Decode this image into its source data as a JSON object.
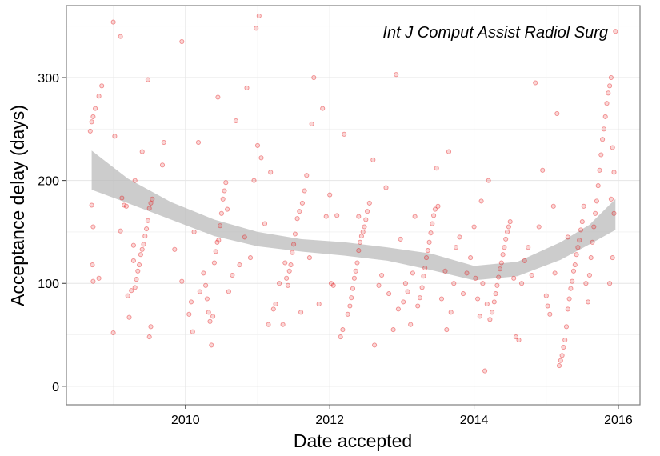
{
  "chart_data": {
    "type": "scatter",
    "title": "",
    "annotation": "Int J Comput Assist Radiol Surg",
    "xlabel": "Date accepted",
    "ylabel": "Acceptance delay (days)",
    "xlim": [
      2008.35,
      2016.3
    ],
    "ylim": [
      -18,
      370
    ],
    "xticks": [
      2010,
      2012,
      2014,
      2016
    ],
    "yticks": [
      0,
      100,
      200,
      300
    ],
    "grid": true,
    "legend": "none",
    "point_color": "#e41a1c",
    "band_color": "#bbbbbb",
    "points": [
      [
        2008.68,
        248
      ],
      [
        2008.7,
        257
      ],
      [
        2008.72,
        262
      ],
      [
        2008.75,
        270
      ],
      [
        2008.8,
        282
      ],
      [
        2008.84,
        292
      ],
      [
        2008.7,
        176
      ],
      [
        2008.72,
        155
      ],
      [
        2008.71,
        118
      ],
      [
        2008.72,
        102
      ],
      [
        2008.8,
        105
      ],
      [
        2009.0,
        354
      ],
      [
        2009.1,
        340
      ],
      [
        2009.02,
        243
      ],
      [
        2009.0,
        52
      ],
      [
        2009.12,
        183
      ],
      [
        2009.15,
        176
      ],
      [
        2009.18,
        175
      ],
      [
        2009.1,
        151
      ],
      [
        2009.2,
        88
      ],
      [
        2009.25,
        93
      ],
      [
        2009.22,
        67
      ],
      [
        2009.28,
        137
      ],
      [
        2009.28,
        122
      ],
      [
        2009.3,
        96
      ],
      [
        2009.32,
        104
      ],
      [
        2009.34,
        112
      ],
      [
        2009.36,
        118
      ],
      [
        2009.38,
        128
      ],
      [
        2009.4,
        133
      ],
      [
        2009.42,
        138
      ],
      [
        2009.44,
        146
      ],
      [
        2009.46,
        153
      ],
      [
        2009.48,
        161
      ],
      [
        2009.5,
        173
      ],
      [
        2009.52,
        178
      ],
      [
        2009.54,
        182
      ],
      [
        2009.48,
        298
      ],
      [
        2009.5,
        48
      ],
      [
        2009.52,
        58
      ],
      [
        2009.4,
        228
      ],
      [
        2009.3,
        200
      ],
      [
        2009.7,
        237
      ],
      [
        2009.68,
        215
      ],
      [
        2009.85,
        133
      ],
      [
        2009.95,
        102
      ],
      [
        2009.95,
        335
      ],
      [
        2010.05,
        70
      ],
      [
        2010.08,
        82
      ],
      [
        2010.1,
        53
      ],
      [
        2010.12,
        150
      ],
      [
        2010.18,
        237
      ],
      [
        2010.2,
        92
      ],
      [
        2010.25,
        110
      ],
      [
        2010.28,
        98
      ],
      [
        2010.3,
        85
      ],
      [
        2010.32,
        72
      ],
      [
        2010.34,
        63
      ],
      [
        2010.36,
        40
      ],
      [
        2010.38,
        68
      ],
      [
        2010.4,
        120
      ],
      [
        2010.42,
        131
      ],
      [
        2010.44,
        140
      ],
      [
        2010.46,
        142
      ],
      [
        2010.48,
        156
      ],
      [
        2010.5,
        168
      ],
      [
        2010.52,
        182
      ],
      [
        2010.54,
        190
      ],
      [
        2010.56,
        198
      ],
      [
        2010.58,
        172
      ],
      [
        2010.45,
        281
      ],
      [
        2010.6,
        92
      ],
      [
        2010.65,
        108
      ],
      [
        2010.7,
        258
      ],
      [
        2010.75,
        118
      ],
      [
        2010.82,
        145
      ],
      [
        2010.85,
        290
      ],
      [
        2010.9,
        125
      ],
      [
        2010.95,
        200
      ],
      [
        2010.98,
        348
      ],
      [
        2011.02,
        360
      ],
      [
        2011.0,
        234
      ],
      [
        2011.05,
        222
      ],
      [
        2011.1,
        158
      ],
      [
        2011.15,
        60
      ],
      [
        2011.18,
        208
      ],
      [
        2011.22,
        75
      ],
      [
        2011.25,
        80
      ],
      [
        2011.3,
        100
      ],
      [
        2011.35,
        60
      ],
      [
        2011.38,
        120
      ],
      [
        2011.4,
        105
      ],
      [
        2011.42,
        98
      ],
      [
        2011.44,
        112
      ],
      [
        2011.46,
        118
      ],
      [
        2011.48,
        130
      ],
      [
        2011.5,
        138
      ],
      [
        2011.52,
        148
      ],
      [
        2011.55,
        163
      ],
      [
        2011.58,
        170
      ],
      [
        2011.62,
        178
      ],
      [
        2011.65,
        190
      ],
      [
        2011.6,
        72
      ],
      [
        2011.68,
        205
      ],
      [
        2011.72,
        125
      ],
      [
        2011.75,
        255
      ],
      [
        2011.78,
        300
      ],
      [
        2011.85,
        80
      ],
      [
        2011.9,
        270
      ],
      [
        2011.95,
        165
      ],
      [
        2012.0,
        186
      ],
      [
        2012.02,
        100
      ],
      [
        2012.05,
        98
      ],
      [
        2012.1,
        166
      ],
      [
        2012.15,
        48
      ],
      [
        2012.18,
        55
      ],
      [
        2012.2,
        245
      ],
      [
        2012.25,
        70
      ],
      [
        2012.28,
        78
      ],
      [
        2012.3,
        86
      ],
      [
        2012.32,
        95
      ],
      [
        2012.34,
        105
      ],
      [
        2012.36,
        112
      ],
      [
        2012.38,
        120
      ],
      [
        2012.4,
        132
      ],
      [
        2012.42,
        140
      ],
      [
        2012.44,
        146
      ],
      [
        2012.46,
        150
      ],
      [
        2012.48,
        155
      ],
      [
        2012.5,
        162
      ],
      [
        2012.52,
        170
      ],
      [
        2012.55,
        178
      ],
      [
        2012.4,
        165
      ],
      [
        2012.6,
        220
      ],
      [
        2012.62,
        40
      ],
      [
        2012.68,
        98
      ],
      [
        2012.72,
        108
      ],
      [
        2012.78,
        193
      ],
      [
        2012.82,
        90
      ],
      [
        2012.88,
        55
      ],
      [
        2012.92,
        303
      ],
      [
        2012.95,
        75
      ],
      [
        2012.98,
        143
      ],
      [
        2013.02,
        82
      ],
      [
        2013.05,
        100
      ],
      [
        2013.08,
        92
      ],
      [
        2013.12,
        60
      ],
      [
        2013.15,
        110
      ],
      [
        2013.18,
        165
      ],
      [
        2013.22,
        78
      ],
      [
        2013.25,
        86
      ],
      [
        2013.28,
        96
      ],
      [
        2013.3,
        107
      ],
      [
        2013.32,
        115
      ],
      [
        2013.34,
        125
      ],
      [
        2013.36,
        132
      ],
      [
        2013.38,
        140
      ],
      [
        2013.4,
        149
      ],
      [
        2013.42,
        158
      ],
      [
        2013.44,
        166
      ],
      [
        2013.46,
        172
      ],
      [
        2013.5,
        175
      ],
      [
        2013.48,
        212
      ],
      [
        2013.55,
        85
      ],
      [
        2013.6,
        112
      ],
      [
        2013.62,
        55
      ],
      [
        2013.65,
        228
      ],
      [
        2013.68,
        72
      ],
      [
        2013.72,
        100
      ],
      [
        2013.75,
        135
      ],
      [
        2013.8,
        145
      ],
      [
        2013.85,
        90
      ],
      [
        2013.9,
        110
      ],
      [
        2013.95,
        125
      ],
      [
        2014.0,
        155
      ],
      [
        2014.02,
        105
      ],
      [
        2014.05,
        85
      ],
      [
        2014.08,
        68
      ],
      [
        2014.1,
        180
      ],
      [
        2014.12,
        100
      ],
      [
        2014.15,
        15
      ],
      [
        2014.18,
        80
      ],
      [
        2014.2,
        200
      ],
      [
        2014.22,
        65
      ],
      [
        2014.25,
        72
      ],
      [
        2014.28,
        82
      ],
      [
        2014.3,
        90
      ],
      [
        2014.32,
        98
      ],
      [
        2014.34,
        106
      ],
      [
        2014.36,
        114
      ],
      [
        2014.38,
        120
      ],
      [
        2014.4,
        128
      ],
      [
        2014.42,
        135
      ],
      [
        2014.44,
        143
      ],
      [
        2014.46,
        150
      ],
      [
        2014.48,
        155
      ],
      [
        2014.5,
        160
      ],
      [
        2014.55,
        105
      ],
      [
        2014.58,
        48
      ],
      [
        2014.62,
        45
      ],
      [
        2014.66,
        100
      ],
      [
        2014.7,
        122
      ],
      [
        2014.75,
        135
      ],
      [
        2014.8,
        108
      ],
      [
        2014.85,
        295
      ],
      [
        2014.9,
        155
      ],
      [
        2014.95,
        210
      ],
      [
        2015.0,
        88
      ],
      [
        2015.02,
        78
      ],
      [
        2015.05,
        70
      ],
      [
        2015.1,
        175
      ],
      [
        2015.12,
        110
      ],
      [
        2015.15,
        265
      ],
      [
        2015.18,
        20
      ],
      [
        2015.2,
        25
      ],
      [
        2015.22,
        30
      ],
      [
        2015.24,
        38
      ],
      [
        2015.26,
        45
      ],
      [
        2015.28,
        58
      ],
      [
        2015.3,
        75
      ],
      [
        2015.32,
        85
      ],
      [
        2015.34,
        95
      ],
      [
        2015.36,
        102
      ],
      [
        2015.38,
        112
      ],
      [
        2015.4,
        118
      ],
      [
        2015.42,
        128
      ],
      [
        2015.44,
        135
      ],
      [
        2015.46,
        142
      ],
      [
        2015.48,
        152
      ],
      [
        2015.5,
        160
      ],
      [
        2015.52,
        175
      ],
      [
        2015.3,
        145
      ],
      [
        2015.55,
        100
      ],
      [
        2015.58,
        82
      ],
      [
        2015.6,
        108
      ],
      [
        2015.62,
        125
      ],
      [
        2015.64,
        140
      ],
      [
        2015.66,
        155
      ],
      [
        2015.68,
        168
      ],
      [
        2015.7,
        180
      ],
      [
        2015.72,
        195
      ],
      [
        2015.74,
        210
      ],
      [
        2015.76,
        225
      ],
      [
        2015.78,
        240
      ],
      [
        2015.8,
        250
      ],
      [
        2015.82,
        262
      ],
      [
        2015.84,
        275
      ],
      [
        2015.86,
        285
      ],
      [
        2015.88,
        292
      ],
      [
        2015.9,
        300
      ],
      [
        2015.92,
        232
      ],
      [
        2015.94,
        208
      ],
      [
        2015.96,
        345
      ],
      [
        2015.88,
        100
      ],
      [
        2015.92,
        125
      ],
      [
        2015.9,
        182
      ],
      [
        2015.94,
        168
      ]
    ],
    "smooth_band": {
      "x": [
        2008.7,
        2009.2,
        2009.8,
        2010.4,
        2011.0,
        2011.6,
        2012.2,
        2012.8,
        2013.4,
        2014.0,
        2014.6,
        2015.2,
        2015.6,
        2015.96
      ],
      "lower": [
        191,
        178,
        162,
        146,
        136,
        131,
        127,
        122,
        113,
        103,
        107,
        123,
        138,
        152
      ],
      "upper": [
        229,
        202,
        179,
        162,
        150,
        143,
        140,
        135,
        129,
        117,
        121,
        140,
        157,
        182
      ]
    }
  }
}
